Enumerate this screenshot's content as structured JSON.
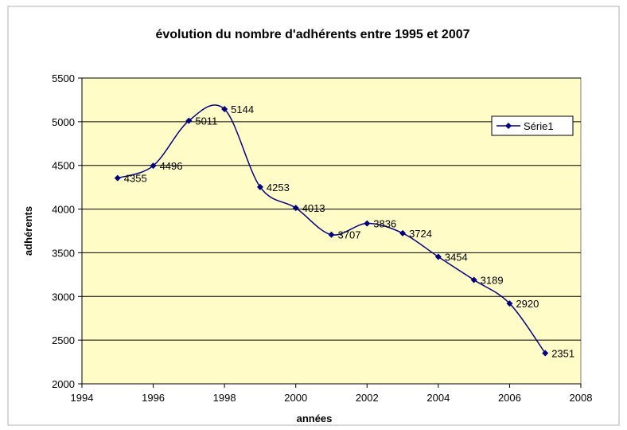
{
  "chart_data": {
    "type": "line",
    "title": "évolution du nombre d'adhérents entre 1995 et 2007",
    "xlabel": "années",
    "ylabel": "adhérents",
    "xlim": [
      1994,
      2008
    ],
    "ylim": [
      2000,
      5500
    ],
    "x_ticks": [
      1994,
      1996,
      1998,
      2000,
      2002,
      2004,
      2006,
      2008
    ],
    "y_ticks": [
      2000,
      2500,
      3000,
      3500,
      4000,
      4500,
      5000,
      5500
    ],
    "grid": "horizontal",
    "smoothed": true,
    "legend_position": "top-right",
    "colors": {
      "series": "#000080",
      "plot_bg": "#fffcc8",
      "frame": "#808080"
    },
    "series": [
      {
        "name": "Série1",
        "x": [
          1995,
          1996,
          1997,
          1998,
          1999,
          2000,
          2001,
          2002,
          2003,
          2004,
          2005,
          2006,
          2007
        ],
        "values": [
          4355,
          4496,
          5011,
          5144,
          4253,
          4013,
          3707,
          3836,
          3724,
          3454,
          3189,
          2920,
          2351
        ],
        "labels": [
          "4355",
          "4496",
          "5011",
          "5144",
          "4253",
          "4013",
          "3707",
          "3836",
          "3724",
          "3454",
          "3189",
          "2920",
          "2351"
        ]
      }
    ]
  }
}
